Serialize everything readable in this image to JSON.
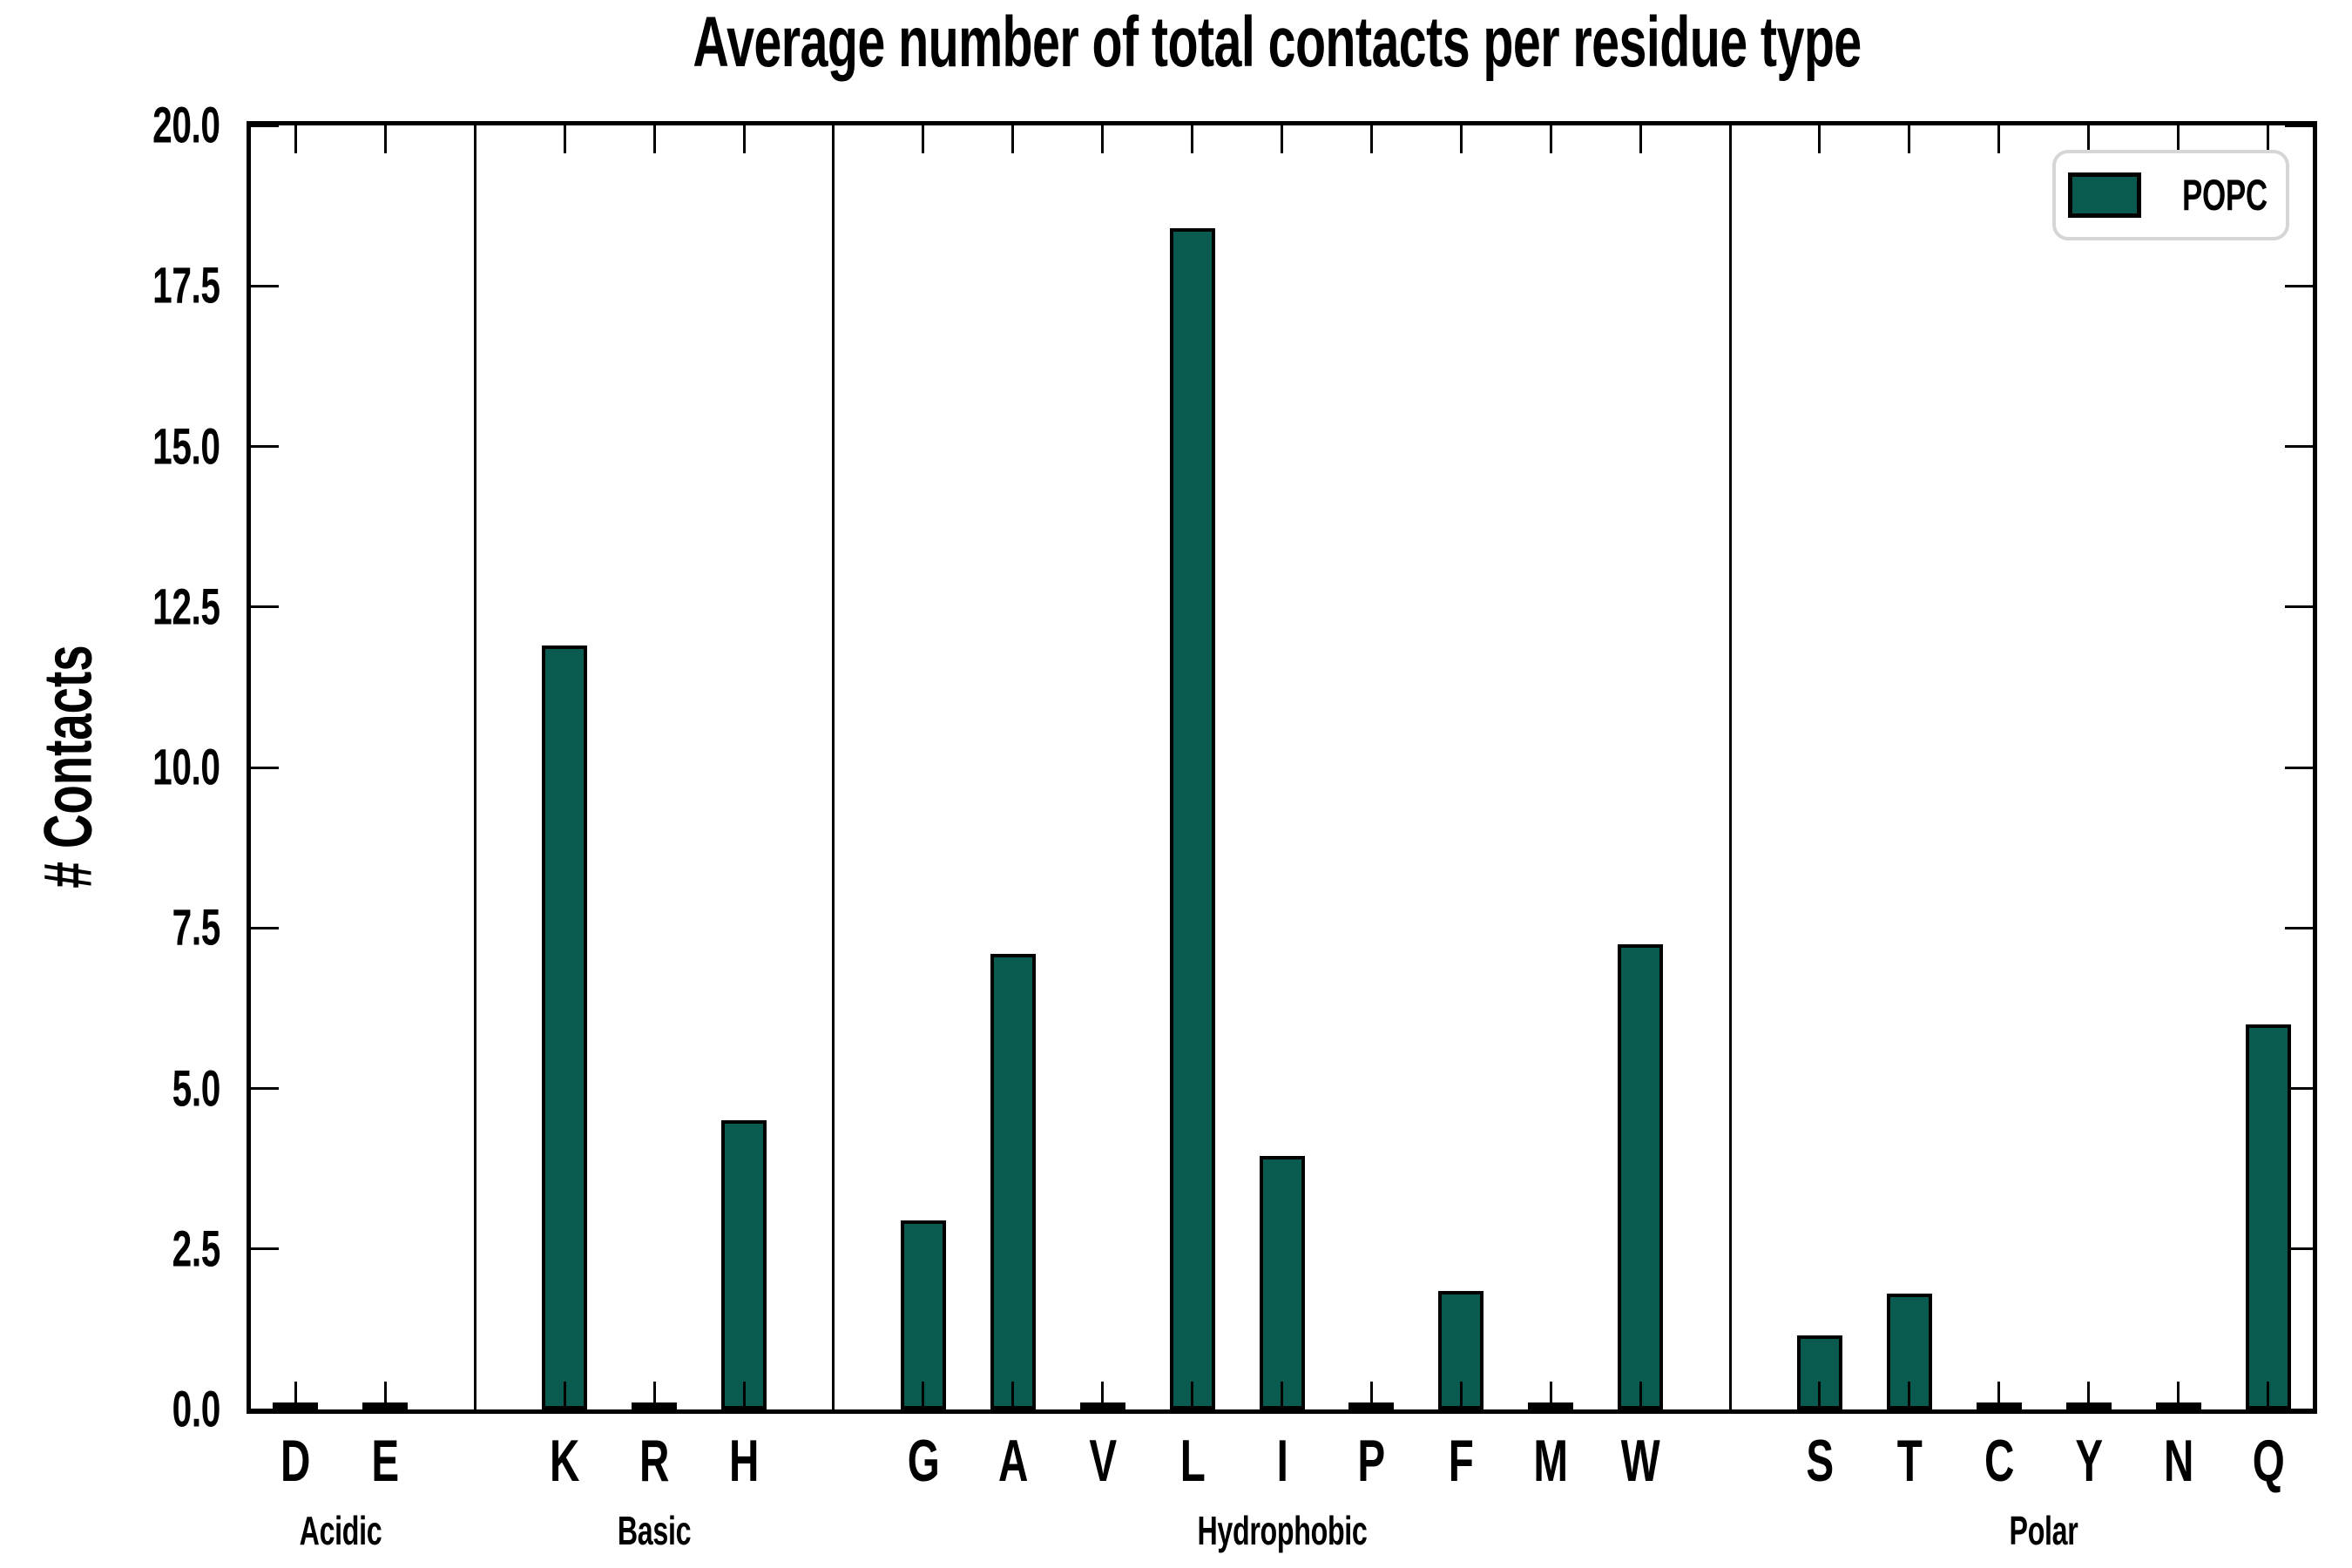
{
  "title": "Average number of total contacts per residue type",
  "ylabel": "# Contacts",
  "legend": {
    "label": "POPC"
  },
  "colors": {
    "bar_fill": "#095B50",
    "bar_edge": "#000000",
    "axis": "#000000",
    "legend_border": "#d6d6d6"
  },
  "chart_data": {
    "type": "bar",
    "title": "Average number of total contacts per residue type",
    "xlabel": "",
    "ylabel": "# Contacts",
    "ylim": [
      0,
      20
    ],
    "yticks": [
      0.0,
      2.5,
      5.0,
      7.5,
      10.0,
      12.5,
      15.0,
      17.5,
      20.0
    ],
    "ytick_labels": [
      "0.0",
      "2.5",
      "5.0",
      "7.5",
      "10.0",
      "12.5",
      "15.0",
      "17.5",
      "20.0"
    ],
    "grid": false,
    "legend_position": "upper right",
    "legend_entries": [
      "POPC"
    ],
    "groups": [
      {
        "label": "Acidic",
        "categories": [
          "D",
          "E"
        ],
        "values": [
          0.05,
          0.05
        ]
      },
      {
        "label": "Basic",
        "categories": [
          "K",
          "R",
          "H"
        ],
        "values": [
          11.9,
          0.05,
          4.5
        ]
      },
      {
        "label": "Hydrophobic",
        "categories": [
          "G",
          "A",
          "V",
          "L",
          "I",
          "P",
          "F",
          "M",
          "W"
        ],
        "values": [
          2.95,
          7.1,
          0.05,
          18.4,
          3.95,
          0.05,
          1.85,
          0.05,
          7.25
        ]
      },
      {
        "label": "Polar",
        "categories": [
          "S",
          "T",
          "C",
          "Y",
          "N",
          "Q"
        ],
        "values": [
          1.15,
          1.8,
          0.05,
          0.05,
          0.05,
          6.0
        ]
      }
    ]
  }
}
